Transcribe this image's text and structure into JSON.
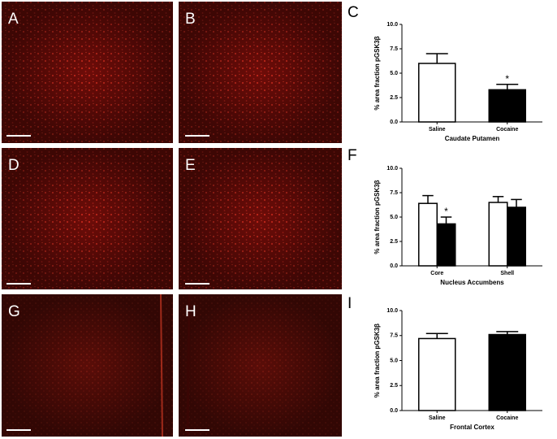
{
  "panel_labels": [
    "A",
    "B",
    "C",
    "D",
    "E",
    "F",
    "G",
    "H",
    "I"
  ],
  "chart_data": [
    {
      "type": "bar",
      "categories": [
        "Saline",
        "Cocaine"
      ],
      "values": [
        6.0,
        3.3
      ],
      "errors": [
        1.0,
        0.55
      ],
      "colors": [
        "#ffffff",
        "#000000"
      ],
      "ylabel": "% area fraction pGSK3β",
      "xlabel": "Caudate Putamen",
      "ylim": [
        0,
        10
      ],
      "yticks": [
        {
          "value": 0,
          "label": "0.0"
        },
        {
          "value": 2.5,
          "label": "2.5"
        },
        {
          "value": 5,
          "label": "5.0"
        },
        {
          "value": 7.5,
          "label": "7.5"
        },
        {
          "value": 10,
          "label": "10.0"
        }
      ],
      "annotations": [
        {
          "text": "*",
          "series": 0,
          "category": 1
        }
      ]
    },
    {
      "type": "bar",
      "categories": [
        "Core",
        "Shell"
      ],
      "series": [
        {
          "color": "#ffffff",
          "values": [
            6.4,
            6.5
          ],
          "errors": [
            0.8,
            0.6
          ]
        },
        {
          "color": "#000000",
          "values": [
            4.3,
            6.0
          ],
          "errors": [
            0.7,
            0.8
          ]
        }
      ],
      "ylabel": "% area fraction pGSK3β",
      "xlabel": "Nucleus Accumbens",
      "ylim": [
        0,
        10
      ],
      "yticks": [
        {
          "value": 0,
          "label": "0.0"
        },
        {
          "value": 2.5,
          "label": "2.5"
        },
        {
          "value": 5,
          "label": "5.0"
        },
        {
          "value": 7.5,
          "label": "7.5"
        },
        {
          "value": 10,
          "label": "10.0"
        }
      ],
      "annotations": [
        {
          "text": "*",
          "series": 1,
          "category": 0
        }
      ]
    },
    {
      "type": "bar",
      "categories": [
        "Saline",
        "Cocaine"
      ],
      "values": [
        7.2,
        7.6
      ],
      "errors": [
        0.5,
        0.3
      ],
      "colors": [
        "#ffffff",
        "#000000"
      ],
      "ylabel": "% area fraction pGSK3β",
      "xlabel": "Frontal Cortex",
      "ylim": [
        0,
        10
      ],
      "yticks": [
        {
          "value": 0,
          "label": "0.0"
        },
        {
          "value": 2.5,
          "label": "2.5"
        },
        {
          "value": 5,
          "label": "5.0"
        },
        {
          "value": 7.5,
          "label": "7.5"
        },
        {
          "value": 10,
          "label": "10.0"
        }
      ]
    }
  ]
}
